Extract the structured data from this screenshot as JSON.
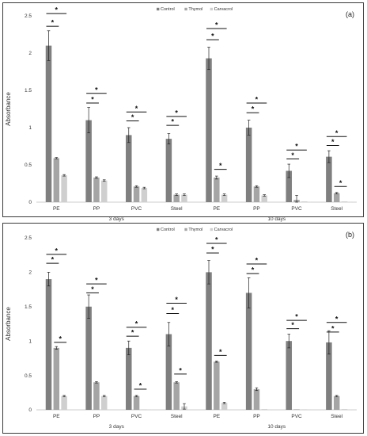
{
  "colors": {
    "Control": "#7f7f7f",
    "Thymol": "#a5a5a5",
    "Carvacrol": "#cfcfcf"
  },
  "chart_data": [
    {
      "type": "bar",
      "panel_label": "(a)",
      "ylabel": "Absorbance",
      "ylim": [
        0,
        2.5
      ],
      "yticks": [
        "0",
        "0.5",
        "1",
        "1.5",
        "2",
        "2.5"
      ],
      "legend_position": "top-center",
      "categories": [
        "PE",
        "PP",
        "PVC",
        "Steel",
        "PE",
        "PP",
        "PVC",
        "Steel"
      ],
      "groups": [
        {
          "label": "3 days",
          "span": [
            0,
            3
          ]
        },
        {
          "label": "10 days",
          "span": [
            4,
            7
          ]
        }
      ],
      "series": [
        {
          "name": "Control",
          "values": [
            2.1,
            1.1,
            0.9,
            0.85,
            1.93,
            1.0,
            0.42,
            0.61
          ],
          "errors": [
            0.2,
            0.17,
            0.1,
            0.07,
            0.15,
            0.1,
            0.09,
            0.08
          ]
        },
        {
          "name": "Thymol",
          "values": [
            0.59,
            0.33,
            0.21,
            0.1,
            0.33,
            0.21,
            0.03,
            0.12
          ],
          "errors": [
            0.01,
            0.01,
            0.01,
            0.01,
            0.02,
            0.01,
            0.06,
            0.01
          ]
        },
        {
          "name": "Carvacrol",
          "values": [
            0.36,
            0.29,
            0.19,
            0.1,
            0.1,
            0.09,
            0.01,
            0.01
          ],
          "errors": [
            0.01,
            0.01,
            0.01,
            0.01,
            0.01,
            0.01,
            0.0,
            0.0
          ]
        }
      ],
      "significance": [
        {
          "category": 0,
          "marks": [
            {
              "from": 0,
              "to": 1,
              "level": 2.36
            },
            {
              "from": 0,
              "to": 2,
              "level": 2.53
            }
          ]
        },
        {
          "category": 1,
          "marks": [
            {
              "from": 0,
              "to": 1,
              "level": 1.33
            },
            {
              "from": 0,
              "to": 2,
              "level": 1.46
            }
          ]
        },
        {
          "category": 2,
          "marks": [
            {
              "from": 0,
              "to": 1,
              "level": 1.09
            },
            {
              "from": 0,
              "to": 2,
              "level": 1.21
            }
          ]
        },
        {
          "category": 3,
          "marks": [
            {
              "from": 0,
              "to": 1,
              "level": 1.03
            },
            {
              "from": 0,
              "to": 2,
              "level": 1.15
            }
          ]
        },
        {
          "category": 4,
          "marks": [
            {
              "from": 0,
              "to": 1,
              "level": 2.18
            },
            {
              "from": 0,
              "to": 2,
              "level": 2.33
            },
            {
              "from": 1,
              "to": 2,
              "level": 0.44
            }
          ]
        },
        {
          "category": 5,
          "marks": [
            {
              "from": 0,
              "to": 1,
              "level": 1.2
            },
            {
              "from": 0,
              "to": 2,
              "level": 1.33
            }
          ]
        },
        {
          "category": 6,
          "marks": [
            {
              "from": 0,
              "to": 1,
              "level": 0.58
            },
            {
              "from": 0,
              "to": 2,
              "level": 0.7
            }
          ]
        },
        {
          "category": 7,
          "marks": [
            {
              "from": 0,
              "to": 1,
              "level": 0.76
            },
            {
              "from": 0,
              "to": 2,
              "level": 0.88
            },
            {
              "from": 1,
              "to": 2,
              "level": 0.21
            }
          ]
        }
      ]
    },
    {
      "type": "bar",
      "panel_label": "(b)",
      "ylabel": "Absorbance",
      "ylim": [
        0,
        2.5
      ],
      "yticks": [
        "0",
        "0.5",
        "1",
        "1.5",
        "2",
        "2.5"
      ],
      "legend_position": "top-center",
      "categories": [
        "PE",
        "PP",
        "PVC",
        "Steel",
        "PE",
        "PP",
        "PVC",
        "Steel"
      ],
      "groups": [
        {
          "label": "3 days",
          "span": [
            0,
            3
          ]
        },
        {
          "label": "10 days",
          "span": [
            4,
            7
          ]
        }
      ],
      "series": [
        {
          "name": "Control",
          "values": [
            1.9,
            1.5,
            0.9,
            1.1,
            2.0,
            1.7,
            1.0,
            0.98
          ],
          "errors": [
            0.1,
            0.17,
            0.1,
            0.17,
            0.17,
            0.22,
            0.1,
            0.17
          ]
        },
        {
          "name": "Thymol",
          "values": [
            0.9,
            0.4,
            0.2,
            0.4,
            0.7,
            0.3,
            0.0,
            0.2
          ],
          "errors": [
            0.02,
            0.01,
            0.01,
            0.01,
            0.01,
            0.02,
            0.0,
            0.01
          ]
        },
        {
          "name": "Carvacrol",
          "values": [
            0.2,
            0.2,
            0.0,
            0.05,
            0.1,
            0.01,
            0.0,
            0.01
          ],
          "errors": [
            0.01,
            0.01,
            0.0,
            0.04,
            0.01,
            0.0,
            0.0,
            0.0
          ]
        }
      ],
      "significance": [
        {
          "category": 0,
          "marks": [
            {
              "from": 0,
              "to": 1,
              "level": 2.13
            },
            {
              "from": 0,
              "to": 2,
              "level": 2.26
            },
            {
              "from": 1,
              "to": 2,
              "level": 0.98
            }
          ]
        },
        {
          "category": 1,
          "marks": [
            {
              "from": 0,
              "to": 1,
              "level": 1.7
            },
            {
              "from": 0,
              "to": 2,
              "level": 1.83
            }
          ]
        },
        {
          "category": 2,
          "marks": [
            {
              "from": 0,
              "to": 1,
              "level": 1.07
            },
            {
              "from": 0,
              "to": 2,
              "level": 1.2
            },
            {
              "from": 1,
              "to": 2,
              "level": 0.3
            }
          ]
        },
        {
          "category": 3,
          "marks": [
            {
              "from": 0,
              "to": 1,
              "level": 1.4
            },
            {
              "from": 0,
              "to": 2,
              "level": 1.55
            },
            {
              "from": 1,
              "to": 2,
              "level": 0.52
            }
          ]
        },
        {
          "category": 4,
          "marks": [
            {
              "from": 0,
              "to": 1,
              "level": 2.28
            },
            {
              "from": 0,
              "to": 2,
              "level": 2.42
            },
            {
              "from": 1,
              "to": 2,
              "level": 0.79
            }
          ]
        },
        {
          "category": 5,
          "marks": [
            {
              "from": 0,
              "to": 1,
              "level": 1.98
            },
            {
              "from": 0,
              "to": 2,
              "level": 2.12
            }
          ]
        },
        {
          "category": 6,
          "marks": [
            {
              "from": 0,
              "to": 1,
              "level": 1.18
            },
            {
              "from": 0,
              "to": 2,
              "level": 1.3
            }
          ]
        },
        {
          "category": 7,
          "marks": [
            {
              "from": 0,
              "to": 1,
              "level": 1.13
            },
            {
              "from": 0,
              "to": 2,
              "level": 1.27
            }
          ]
        }
      ]
    }
  ]
}
